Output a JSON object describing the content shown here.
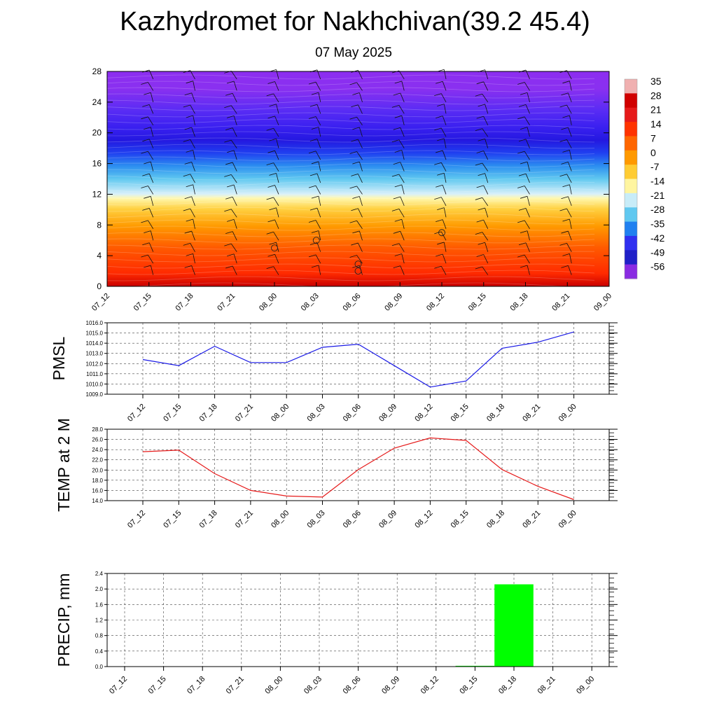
{
  "page": {
    "title": "Kazhydromet for Nakhchivan(39.2 45.4)",
    "subtitle": "07 May 2025"
  },
  "colors": {
    "pmsl_line": "#1a1ae6",
    "temp_line": "#e61a1a",
    "precip_bar": "#00ff00",
    "grid": "#444444"
  },
  "chart_data": [
    {
      "type": "heatmap",
      "description_id": "temperature-cross-section",
      "x_tick_labels": [
        "07_12",
        "07_15",
        "07_18",
        "07_21",
        "08_00",
        "08_03",
        "08_06",
        "08_09",
        "08_12",
        "08_15",
        "08_18",
        "08_21",
        "09_00"
      ],
      "y_ticks": [
        0,
        4,
        8,
        12,
        16,
        20,
        24,
        28
      ],
      "ylim": [
        0,
        28
      ],
      "colorbar_labels": [
        "35",
        "28",
        "21",
        "14",
        "7",
        "0",
        "-7",
        "-14",
        "-21",
        "-28",
        "-35",
        "-42",
        "-49",
        "-56"
      ],
      "colorbar_colors": [
        "#f0b0b0",
        "#d00000",
        "#e61a1a",
        "#ff3300",
        "#ff6600",
        "#ff9900",
        "#ffcc33",
        "#fff5a0",
        "#c8ecf8",
        "#60c8f0",
        "#2080f0",
        "#3030f0",
        "#2020c8",
        "#8a2be2"
      ],
      "overlay": "wind barbs and isotherms"
    },
    {
      "type": "line",
      "ylabel": "PMSL",
      "categories": [
        "07_12",
        "07_15",
        "07_18",
        "07_21",
        "08_00",
        "08_03",
        "08_06",
        "08_09",
        "08_12",
        "08_15",
        "08_18",
        "08_21",
        "09_00"
      ],
      "y_tick_labels": [
        "1009.0",
        "1010.0",
        "1011.0",
        "1012.0",
        "1013.0",
        "1014.0",
        "1015.0",
        "1016.0"
      ],
      "ylim": [
        1009,
        1016
      ],
      "grid": true,
      "series": [
        {
          "values": [
            1012.4,
            1011.8,
            1013.7,
            1012.1,
            1012.1,
            1013.6,
            1013.9,
            1011.8,
            1009.7,
            1010.3,
            1013.5,
            1014.1,
            1015.1
          ]
        }
      ]
    },
    {
      "type": "line",
      "ylabel": "TEMP at 2 M",
      "categories": [
        "07_12",
        "07_15",
        "07_18",
        "07_21",
        "08_00",
        "08_03",
        "08_06",
        "08_09",
        "08_12",
        "08_15",
        "08_18",
        "08_21",
        "09_00"
      ],
      "y_tick_labels": [
        "14.0",
        "16.0",
        "18.0",
        "20.0",
        "22.0",
        "24.0",
        "26.0",
        "28.0"
      ],
      "ylim": [
        14,
        28
      ],
      "grid": true,
      "series": [
        {
          "values": [
            23.6,
            23.9,
            19.3,
            16.0,
            14.9,
            14.7,
            20.1,
            24.3,
            26.3,
            25.8,
            20.1,
            16.8,
            14.2
          ]
        }
      ]
    },
    {
      "type": "bar",
      "ylabel": "PRECIP, mm",
      "categories": [
        "07_12",
        "07_15",
        "07_18",
        "07_21",
        "08_00",
        "08_03",
        "08_06",
        "08_09",
        "08_12",
        "08_15",
        "08_18",
        "08_21",
        "09_00"
      ],
      "y_tick_labels": [
        "0.0",
        "0.4",
        "0.8",
        "1.2",
        "1.6",
        "2.0",
        "2.4"
      ],
      "ylim": [
        0,
        2.4
      ],
      "grid": true,
      "values": [
        0,
        0,
        0,
        0,
        0,
        0,
        0,
        0,
        0,
        0.02,
        2.12,
        0,
        0
      ]
    }
  ]
}
